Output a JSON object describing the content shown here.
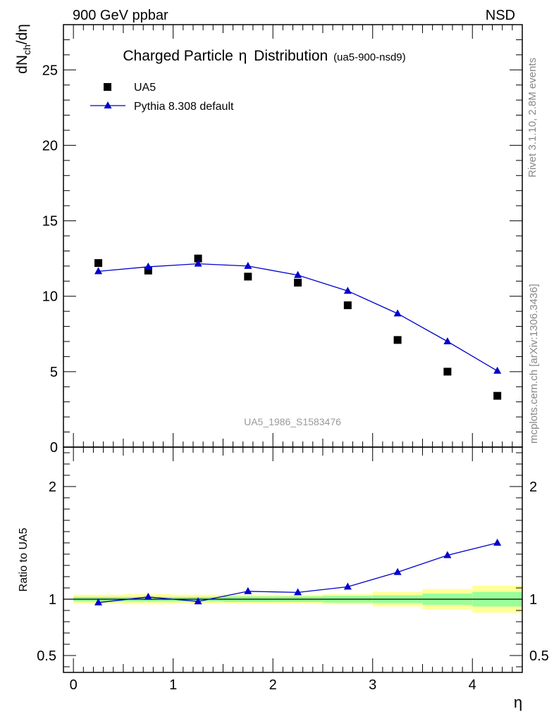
{
  "header": {
    "left": "900 GeV ppbar",
    "right": "NSD"
  },
  "side_labels": {
    "rivet": "Rivet 3.1.10,  2.8M events",
    "mcplots": "mcplots.cern.ch [arXiv:1306.3436]"
  },
  "chart_data": [
    {
      "type": "scatter",
      "title": "Charged Particle",
      "title_symbol": "η",
      "title_suffix": "Distribution",
      "title_tag": "(ua5-900-nsd9)",
      "watermark": "UA5_1986_S1583476",
      "ylabel": "dN",
      "ylabel_sub": "ch",
      "ylabel_tail": "/dη",
      "xlim": [
        -0.1,
        4.5
      ],
      "ylim": [
        0,
        28
      ],
      "yticks": [
        {
          "value": 0,
          "label": "0"
        },
        {
          "value": 5,
          "label": "5"
        },
        {
          "value": 10,
          "label": "10"
        },
        {
          "value": 15,
          "label": "15"
        },
        {
          "value": 20,
          "label": "20"
        },
        {
          "value": 25,
          "label": "25"
        }
      ],
      "legend_position": "top-left",
      "series": [
        {
          "name": "UA5",
          "marker": "square",
          "color": "#000000",
          "x": [
            0.25,
            0.75,
            1.25,
            1.75,
            2.25,
            2.75,
            3.25,
            3.75,
            4.25
          ],
          "y": [
            12.2,
            11.7,
            12.5,
            11.3,
            10.9,
            9.4,
            7.1,
            5.0,
            3.4
          ]
        },
        {
          "name": "Pythia 8.308 default",
          "marker": "triangle",
          "color": "#0000cc",
          "x": [
            0.25,
            0.75,
            1.25,
            1.75,
            2.25,
            2.75,
            3.25,
            3.75,
            4.25
          ],
          "y": [
            11.65,
            11.95,
            12.15,
            12.0,
            11.4,
            10.35,
            8.85,
            7.0,
            5.05
          ]
        }
      ]
    },
    {
      "type": "line",
      "ylabel": "Ratio to UA5",
      "xlabel": "η",
      "xlim": [
        -0.1,
        4.5
      ],
      "ylim": [
        0.35,
        2.35
      ],
      "xticks": [
        {
          "value": 0,
          "label": "0"
        },
        {
          "value": 1,
          "label": "1"
        },
        {
          "value": 2,
          "label": "2"
        },
        {
          "value": 3,
          "label": "3"
        },
        {
          "value": 4,
          "label": "4"
        }
      ],
      "yticks": [
        {
          "value": 0.5,
          "label": "0.5"
        },
        {
          "value": 1,
          "label": "1"
        },
        {
          "value": 2,
          "label": "2"
        }
      ],
      "bands": {
        "edges": [
          0,
          0.5,
          1.0,
          1.5,
          2.0,
          2.5,
          3.0,
          3.5,
          4.0,
          4.5
        ],
        "stat": [
          0.02,
          0.02,
          0.02,
          0.025,
          0.025,
          0.03,
          0.035,
          0.05,
          0.065
        ],
        "total": [
          0.04,
          0.045,
          0.04,
          0.04,
          0.04,
          0.045,
          0.065,
          0.09,
          0.12
        ],
        "stat_color": "#99ff99",
        "total_color": "#ffff99"
      },
      "series": [
        {
          "name": "Pythia 8.308 default",
          "marker": "triangle",
          "color": "#0000cc",
          "x": [
            0.25,
            0.75,
            1.25,
            1.75,
            2.25,
            2.75,
            3.25,
            3.75,
            4.25
          ],
          "y": [
            0.97,
            1.02,
            0.98,
            1.07,
            1.06,
            1.11,
            1.24,
            1.39,
            1.5
          ]
        }
      ]
    }
  ]
}
